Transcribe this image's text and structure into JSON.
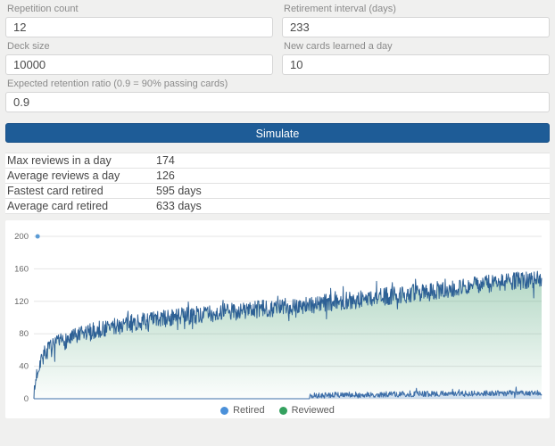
{
  "form": {
    "fields": [
      {
        "id": "repetition-count",
        "label": "Repetition count",
        "value": "12"
      },
      {
        "id": "retirement-interval",
        "label": "Retirement interval (days)",
        "value": "233"
      },
      {
        "id": "deck-size",
        "label": "Deck size",
        "value": "10000"
      },
      {
        "id": "new-cards-per-day",
        "label": "New cards learned a day",
        "value": "10"
      },
      {
        "id": "retention-ratio",
        "label": "Expected retention ratio (0.9 = 90% passing cards)",
        "value": "0.9"
      }
    ],
    "simulate_label": "Simulate",
    "button_color": "#1e5c97"
  },
  "stats": {
    "rows": [
      {
        "label": "Max reviews in a day",
        "value": "174"
      },
      {
        "label": "Average reviews a day",
        "value": "126"
      },
      {
        "label": "Fastest card retired",
        "value": "595 days"
      },
      {
        "label": "Average card retired",
        "value": "633 days"
      }
    ]
  },
  "chart_data": {
    "type": "line",
    "title": "",
    "xlabel": "",
    "ylabel": "",
    "grid": true,
    "legend_position": "bottom",
    "x_axis": {
      "range": [
        0,
        1095
      ],
      "tick_labels_visible": false
    },
    "y_axis": {
      "range": [
        0,
        200
      ],
      "ticks": [
        0,
        40,
        80,
        120,
        160,
        200
      ]
    },
    "samples": 1095,
    "seed": 7,
    "legend": [
      {
        "name": "Retired",
        "color": "#4a90d9"
      },
      {
        "name": "Reviewed",
        "color": "#34a15f"
      }
    ],
    "series": [
      {
        "name": "Reviewed",
        "line_color": "#2d6095",
        "fill_gradient": [
          "rgba(72,160,114,0.42)",
          "rgba(72,160,114,0.02)"
        ],
        "keypoints": [
          [
            0,
            0
          ],
          [
            5,
            28
          ],
          [
            15,
            50
          ],
          [
            30,
            60
          ],
          [
            60,
            70
          ],
          [
            120,
            82
          ],
          [
            180,
            90
          ],
          [
            270,
            98
          ],
          [
            365,
            104
          ],
          [
            480,
            110
          ],
          [
            600,
            116
          ],
          [
            730,
            124
          ],
          [
            850,
            132
          ],
          [
            950,
            140
          ],
          [
            1095,
            148
          ]
        ],
        "noise": 11,
        "spike_chance": 0.06,
        "spike_extra": 14,
        "zero_until": null
      },
      {
        "name": "Retired",
        "line_color": "#3d6ea8",
        "fill_color": "rgba(130,168,216,0.35)",
        "keypoints": [
          [
            595,
            4
          ],
          [
            700,
            5
          ],
          [
            850,
            6
          ],
          [
            1095,
            7
          ]
        ],
        "noise": 3.5,
        "spike_chance": 0.05,
        "spike_extra": 5,
        "zero_until": 595
      }
    ],
    "stray_point": {
      "x": 8,
      "y": 200,
      "color": "#5b9bd5",
      "radius": 2.5
    },
    "colors": {
      "gridline": "#e6e6e6",
      "tick_label": "#696969"
    }
  }
}
